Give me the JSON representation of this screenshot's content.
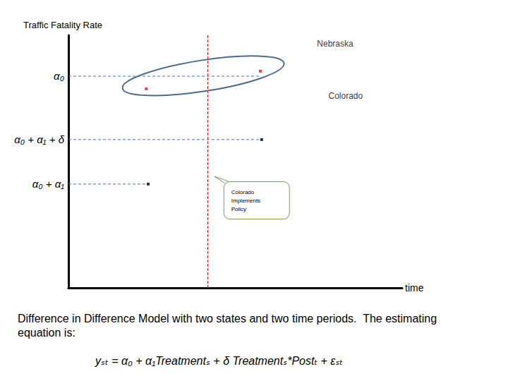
{
  "chart_data": {
    "type": "scatter",
    "title": "Difference in Difference Model with two states and two time periods.  The estimating equation is:",
    "subtitle": "yₛₜ = α₀ + α₁Treatmentₛ + δ Treatmentₛ*Postₜ + εₛₜ",
    "x_label": "time",
    "y_label": "Traffic Fatality Rate",
    "series": [
      {
        "name": "Nebraska",
        "color": "#e8191b",
        "x": [
          23.3,
          57.5
        ],
        "values": [
          78.8,
          85.8
        ]
      },
      {
        "name": "Colorado",
        "color": "#000000",
        "x": [
          23.9,
          57.9
        ],
        "values": [
          41.1,
          58.7
        ]
      }
    ],
    "xlim": [
      0,
      100
    ],
    "ylim": [
      0,
      100
    ],
    "yticks": [
      {
        "value": 41.1,
        "label": "α₀ + α₁"
      },
      {
        "value": 58.7,
        "label": "α₀ + α₁ + δ"
      },
      {
        "value": 83.8,
        "label": "α₀"
      }
    ],
    "annotations": [
      {
        "text": "Colorado Implements Policy",
        "x": 41.6
      }
    ],
    "marker": "square",
    "grid": false,
    "tick_labels": "y"
  }
}
